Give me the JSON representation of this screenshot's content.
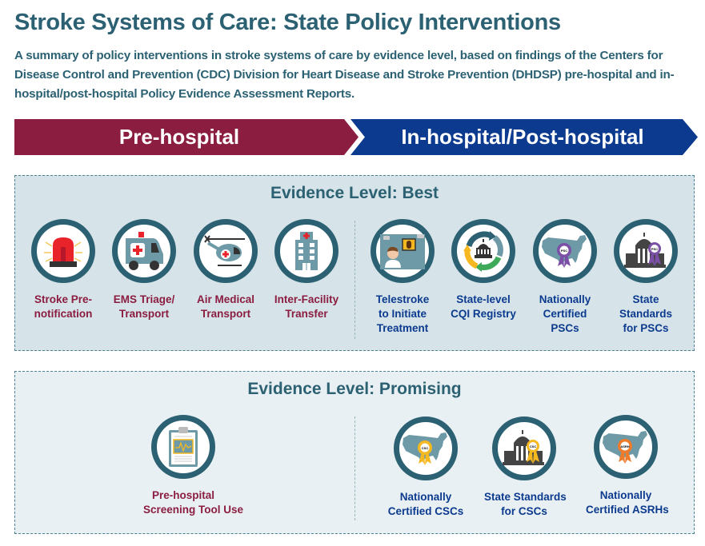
{
  "header": {
    "title": "Stroke Systems of Care: State Policy Interventions",
    "subtitle": "A summary of policy interventions in stroke systems of care by evidence level, based on findings of the Centers for Disease Control and Prevention (CDC) Division for Heart Disease and Stroke Prevention (DHDSP) pre-hospital and in-hospital/post-hospital Policy Evidence Assessment Reports."
  },
  "banners": {
    "pre": {
      "label": "Pre-hospital",
      "color": "#8b1d40"
    },
    "post": {
      "label": "In-hospital/Post-hospital",
      "color": "#0b3a8f"
    }
  },
  "colors": {
    "accent": "#2b6172",
    "pre_text": "#8b1d40",
    "post_text": "#0b3a8f",
    "best_bg": "#d6e3e8",
    "promising_bg": "#e9f0f3"
  },
  "best": {
    "title": "Evidence Level: Best",
    "items": [
      {
        "icon": "siren-icon",
        "lines": [
          "Stroke Pre-",
          "notification"
        ],
        "phase": "pre"
      },
      {
        "icon": "ambulance-icon",
        "lines": [
          "EMS Triage/",
          "Transport"
        ],
        "phase": "pre"
      },
      {
        "icon": "helicopter-icon",
        "lines": [
          "Air Medical",
          "Transport"
        ],
        "phase": "pre"
      },
      {
        "icon": "hospital-building-icon",
        "lines": [
          "Inter-Facility",
          "Transfer"
        ],
        "phase": "pre"
      },
      {
        "icon": "telemedicine-icon",
        "lines": [
          "Telestroke",
          "to Initiate",
          "Treatment"
        ],
        "phase": "post"
      },
      {
        "icon": "cycle-registry-icon",
        "lines": [
          "State-level",
          "CQI Registry"
        ],
        "phase": "post"
      },
      {
        "icon": "us-map-ribbon-icon",
        "badge": "PSC",
        "lines": [
          "Nationally",
          "Certified",
          "PSCs"
        ],
        "phase": "post"
      },
      {
        "icon": "capitol-ribbon-icon",
        "badge": "PSC",
        "lines": [
          "State",
          "Standards",
          "for PSCs"
        ],
        "phase": "post"
      }
    ]
  },
  "promising": {
    "title": "Evidence Level: Promising",
    "items": [
      {
        "icon": "clipboard-chart-icon",
        "lines": [
          "Pre-hospital",
          "Screening Tool Use"
        ],
        "phase": "pre"
      },
      {
        "icon": "us-map-ribbon-icon",
        "badge": "CSC",
        "lines": [
          "Nationally",
          "Certified CSCs"
        ],
        "phase": "post"
      },
      {
        "icon": "capitol-ribbon-icon",
        "badge": "CSC",
        "lines": [
          "State Standards",
          "for CSCs"
        ],
        "phase": "post"
      },
      {
        "icon": "us-map-ribbon-icon",
        "badge": "ASRH",
        "lines": [
          "Nationally",
          "Certified ASRHs"
        ],
        "phase": "post"
      }
    ]
  }
}
